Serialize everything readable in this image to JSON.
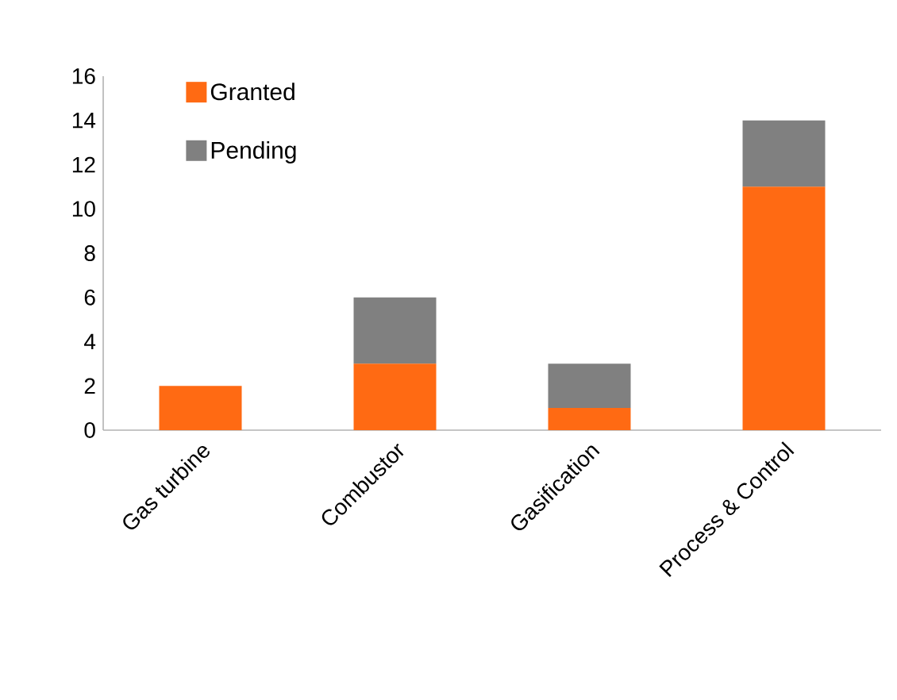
{
  "chart_data": {
    "type": "bar",
    "stacked": true,
    "categories": [
      "Gas turbine",
      "Combustor",
      "Gasification",
      "Process & Control"
    ],
    "series": [
      {
        "name": "Granted",
        "color": "#ff6a13",
        "values": [
          2,
          3,
          1,
          11
        ]
      },
      {
        "name": "Pending",
        "color": "#808080",
        "values": [
          0,
          3,
          2,
          3
        ]
      }
    ],
    "ylim": [
      0,
      16
    ],
    "yticks": [
      0,
      2,
      4,
      6,
      8,
      10,
      12,
      14,
      16
    ],
    "legend": "top left"
  }
}
